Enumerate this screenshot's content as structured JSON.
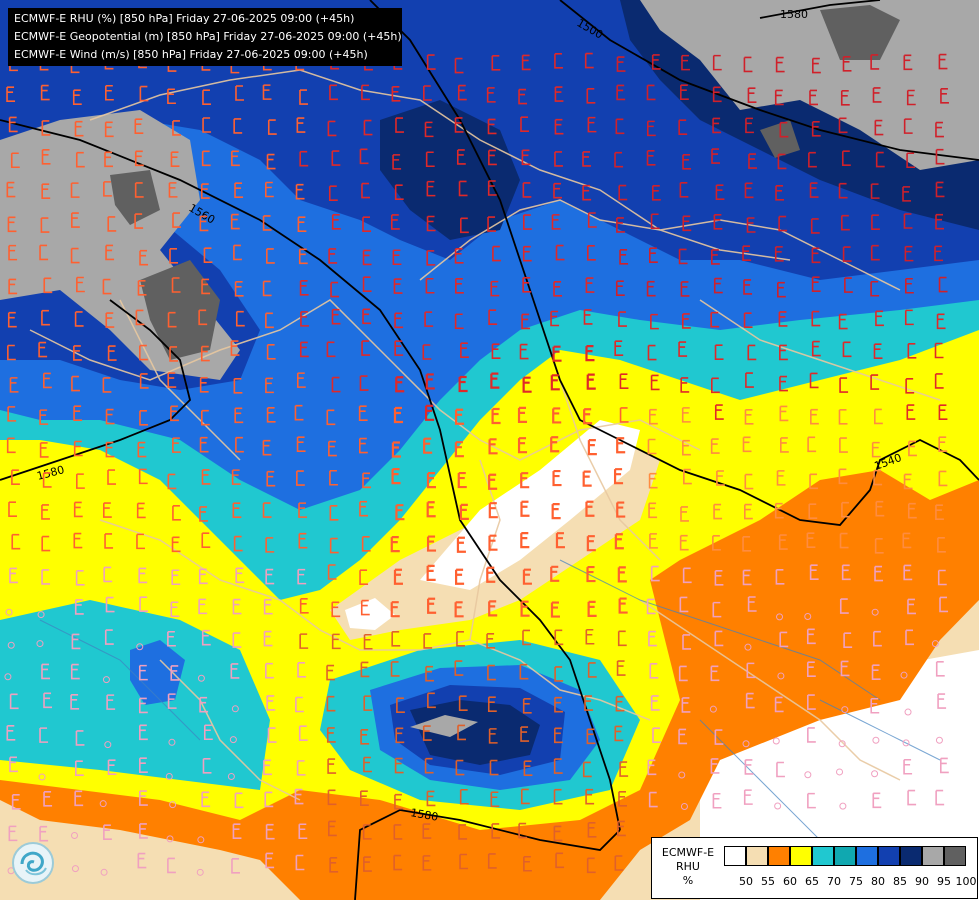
{
  "title_lines": [
    "ECMWF-E RHU (%) [850 hPa] Friday 27-06-2025 09:00 (+45h)",
    "ECMWF-E Geopotential (m) [850 hPa] Friday 27-06-2025 09:00 (+45h)",
    "ECMWF-E Wind (m/s) [850 hPa] Friday 27-06-2025 09:00 (+45h)"
  ],
  "legend": {
    "name_line1": "ECMWF-E",
    "name_line2": "RHU",
    "unit": "%",
    "labels": [
      "50",
      "55",
      "60",
      "65",
      "70",
      "75",
      "80",
      "85",
      "90",
      "95",
      "100"
    ],
    "colors": [
      "#ffffff",
      "#f5deb3",
      "#ff8000",
      "#ffff00",
      "#20c8d0",
      "#10a8b0",
      "#1e6fe0",
      "#1240b0",
      "#0a2a70",
      "#a8a8a8",
      "#606060"
    ]
  },
  "contour_labels": [
    "1500",
    "1580",
    "1560",
    "1580",
    "1540",
    "1580"
  ],
  "colors": {
    "white": "#ffffff",
    "wheat": "#f5deb3",
    "orange": "#ff8000",
    "yellow": "#ffff00",
    "cyan": "#20c8d0",
    "teal": "#10a8b0",
    "blue": "#1e6fe0",
    "darkblue": "#1240b0",
    "navy": "#0a2a70",
    "grey": "#a8a8a8",
    "darkgrey": "#606060"
  },
  "icons": [
    "ecmwf-logo-icon"
  ]
}
